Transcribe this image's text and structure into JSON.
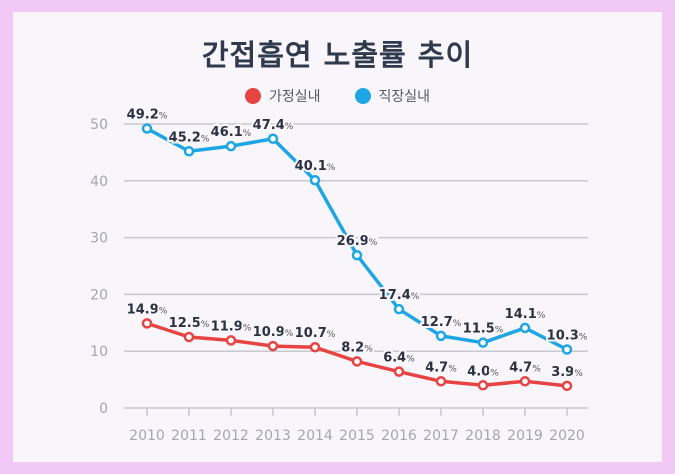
{
  "chart_data": {
    "type": "line",
    "title": "간접흡연 노출률 추이",
    "categories": [
      "2010",
      "2011",
      "2012",
      "2013",
      "2014",
      "2015",
      "2016",
      "2017",
      "2018",
      "2019",
      "2020"
    ],
    "series": [
      {
        "name": "가정실내",
        "color": "#e84343",
        "values": [
          14.9,
          12.5,
          11.9,
          10.9,
          10.7,
          8.2,
          6.4,
          4.7,
          4.0,
          4.7,
          3.9
        ]
      },
      {
        "name": "직장실내",
        "color": "#1ea6e4",
        "values": [
          49.2,
          45.2,
          46.1,
          47.4,
          40.1,
          26.9,
          17.4,
          12.7,
          11.5,
          14.1,
          10.3
        ]
      }
    ],
    "value_suffix": "%",
    "ylim": [
      0,
      50
    ],
    "yticks": [
      0,
      10,
      20,
      30,
      40,
      50
    ],
    "grid": true,
    "legend_position": "top-center"
  }
}
